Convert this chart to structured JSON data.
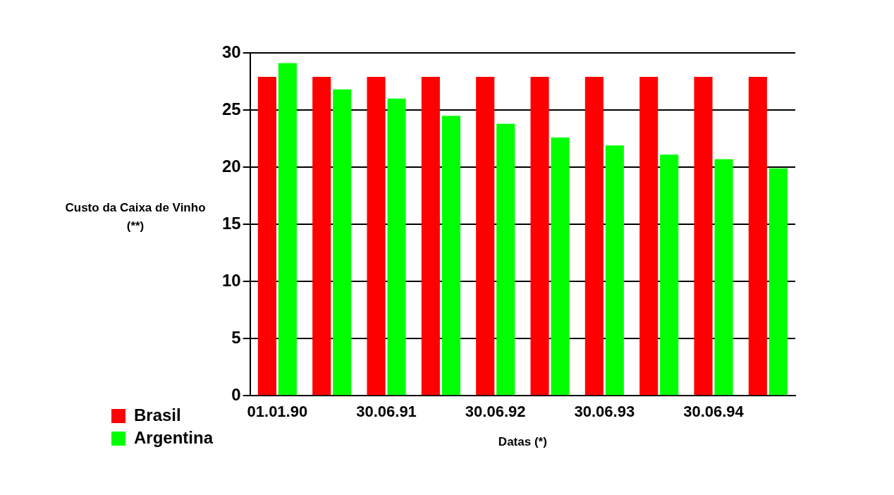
{
  "chart_data": {
    "type": "bar",
    "xlabel": "Datas (*)",
    "ylabel": "Custo da Caixa de Vinho (**)",
    "categories": [
      "01.01.90",
      null,
      "30.06.91",
      null,
      "30.06.92",
      null,
      "30.06.93",
      null,
      "30.06.94",
      null
    ],
    "series": [
      {
        "name": "Brasil",
        "color": "#ff0000",
        "values": [
          27.9,
          27.9,
          27.9,
          27.9,
          27.9,
          27.9,
          27.9,
          27.9,
          27.9,
          27.9
        ]
      },
      {
        "name": "Argentina",
        "color": "#00ff00",
        "values": [
          29.1,
          26.8,
          26.0,
          24.5,
          23.8,
          22.6,
          21.9,
          21.1,
          20.7,
          19.9
        ]
      }
    ],
    "ylim": [
      0,
      30
    ],
    "yticks": [
      0,
      5,
      10,
      15,
      20,
      25,
      30
    ],
    "grid": "y",
    "legend": "bottom left"
  }
}
